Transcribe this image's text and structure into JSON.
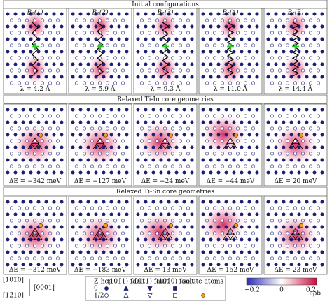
{
  "sections": [
    {
      "title": "Initial configurations",
      "column_labels": [
        "B₂(1)",
        "B₂(2)",
        "B₂(3)",
        "B₂(4)",
        "B₂(5)"
      ],
      "panel_labels": [
        "λ = 4.2 Å",
        "λ = 5.9 Å",
        "λ = 9.3 Å",
        "λ = 11.0 Å",
        "λ = 14.4 Å"
      ]
    },
    {
      "title": "Relaxed Ti-In core geometries",
      "panel_labels": [
        "ΔE = −342 meV",
        "ΔE = −127 meV",
        "ΔE = −24 meV",
        "ΔE = −44 meV",
        "ΔE = 20 meV"
      ]
    },
    {
      "title": "Relaxed Ti-Sn core geometries",
      "panel_labels": [
        "ΔE = −312 meV",
        "ΔE = −183 meV",
        "ΔE = 13 meV",
        "ΔE = 152 meV",
        "ΔE = 23 meV"
      ]
    }
  ],
  "axes": {
    "vertical": "[101̄0]",
    "out_of_plane": "[0001]",
    "horizontal": "[12̄10]"
  },
  "legend": {
    "z_header": "Z",
    "columns": [
      "hcp",
      "(101̄1) fault",
      "(1̄011) fault",
      "(101̄0) fault",
      "solute atoms"
    ],
    "z_values": [
      "0",
      "1/2"
    ]
  },
  "colorbar": {
    "ticks": [
      "−0.2",
      "0",
      "0.2"
    ],
    "label": "aρb"
  }
}
